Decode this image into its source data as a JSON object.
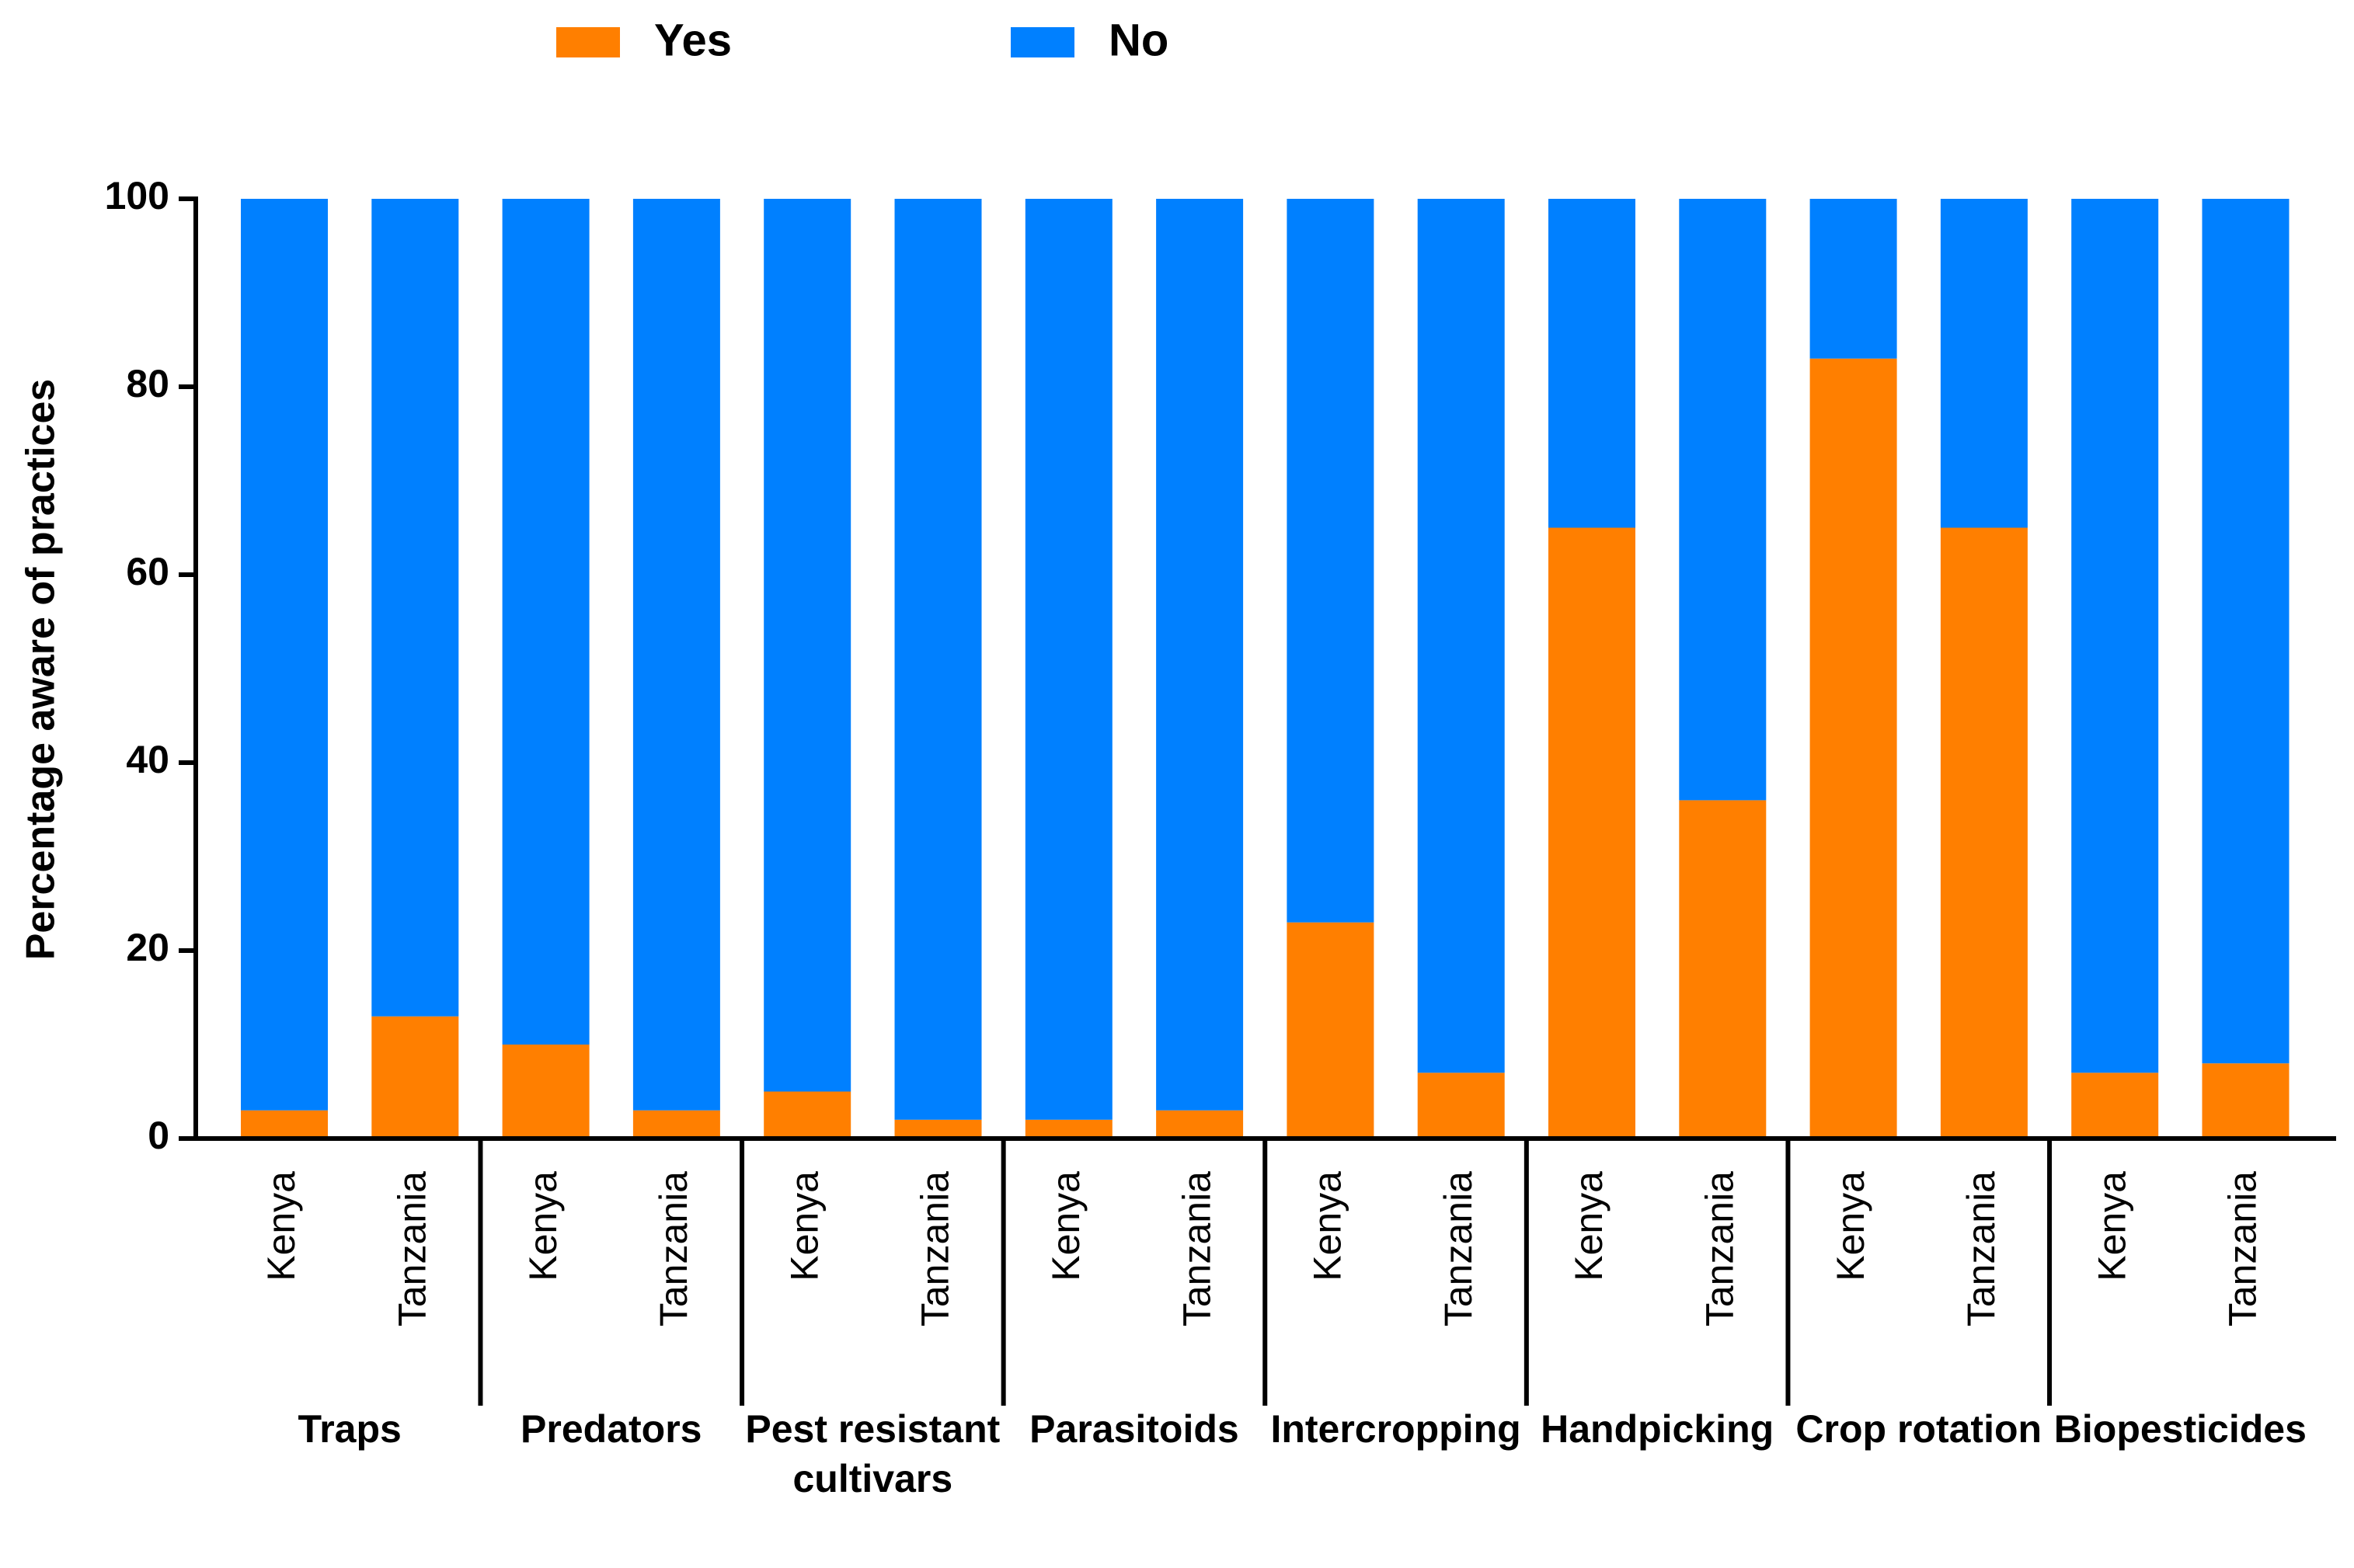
{
  "chart_data": {
    "type": "stacked_bar",
    "y_label": "Percentage  aware of practices",
    "categories": [
      "Kenya",
      "Tanzania",
      "Kenya",
      "Tanzania",
      "Kenya",
      "Tanzania",
      "Kenya",
      "Tanzania",
      "Kenya",
      "Tanzania",
      "Kenya",
      "Tanzania",
      "Kenya",
      "Tanzania",
      "Kenya",
      "Tanzania"
    ],
    "groups": [
      "Traps",
      "Predators",
      "Pest resistant cultivars",
      "Parasitoids",
      "Intercropping",
      "Handpicking",
      "Crop rotation",
      "Biopesticides"
    ],
    "series": [
      {
        "name": "Yes",
        "color": "#ff7f00",
        "values": [
          3,
          13,
          10,
          3,
          5,
          2,
          2,
          3,
          23,
          7,
          65,
          36,
          83,
          65,
          7,
          8
        ]
      },
      {
        "name": "No",
        "color": "#0080ff",
        "values": [
          97,
          87,
          90,
          97,
          95,
          98,
          98,
          97,
          77,
          93,
          35,
          64,
          17,
          35,
          93,
          92
        ]
      }
    ],
    "ylim": [
      0,
      100
    ],
    "yticks": [
      0,
      20,
      40,
      60,
      80,
      100
    ],
    "grid": false,
    "legend": "top"
  }
}
